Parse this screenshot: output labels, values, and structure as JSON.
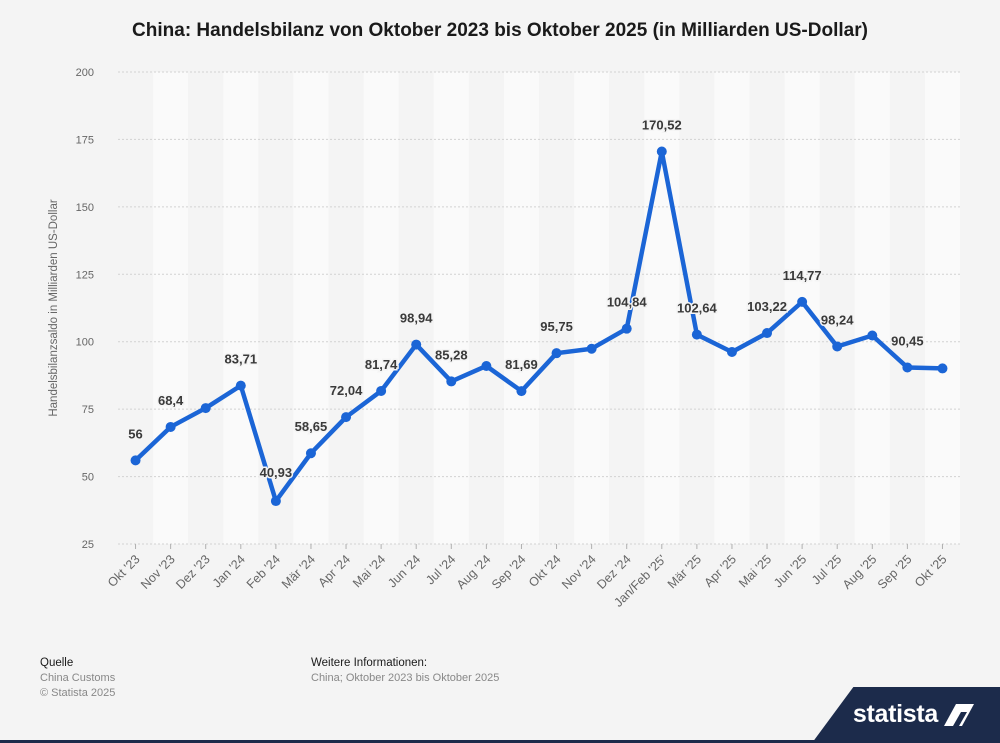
{
  "chart_data": {
    "type": "line",
    "title": "China: Handelsbilanz von Oktober 2023 bis Oktober 2025 (in Milliarden US-Dollar)",
    "xlabel": "",
    "ylabel": "Handelsbilanzsaldo in Milliarden US-Dollar",
    "ylim": [
      25,
      200
    ],
    "yticks": [
      25,
      50,
      75,
      100,
      125,
      150,
      175,
      200
    ],
    "categories": [
      "Okt '23",
      "Nov '23",
      "Dez '23",
      "Jan '24",
      "Feb '24",
      "Mär '24",
      "Apr '24",
      "Mai '24",
      "Jun '24",
      "Jul '24",
      "Aug '24",
      "Sep '24",
      "Okt '24",
      "Nov '24",
      "Dez '24",
      "Jan/Feb '25'",
      "Mär '25",
      "Apr '25",
      "Mai '25",
      "Jun '25",
      "Jul '25",
      "Aug '25",
      "Sep '25",
      "Okt '25"
    ],
    "values": [
      56,
      68.4,
      75.4,
      83.71,
      40.93,
      58.65,
      72.04,
      81.74,
      98.94,
      85.28,
      91.0,
      81.69,
      95.75,
      97.4,
      104.84,
      170.52,
      102.64,
      96.2,
      103.22,
      114.77,
      98.24,
      102.3,
      90.45,
      90.1
    ],
    "labels": [
      "56",
      "68,4",
      "",
      "83,71",
      "40,93",
      "58,65",
      "72,04",
      "81,74",
      "98,94",
      "85,28",
      "",
      "81,69",
      "95,75",
      "",
      "104,84",
      "170,52",
      "102,64",
      "",
      "103,22",
      "114,77",
      "98,24",
      "",
      "90,45",
      ""
    ],
    "series_color": "#1b65d6"
  },
  "footer": {
    "source_heading": "Quelle",
    "source_lines": [
      "China Customs",
      "© Statista 2025"
    ],
    "info_heading": "Weitere Informationen:",
    "info_text": "China; Oktober 2023 bis Oktober 2025"
  },
  "brand": {
    "name": "statista"
  }
}
